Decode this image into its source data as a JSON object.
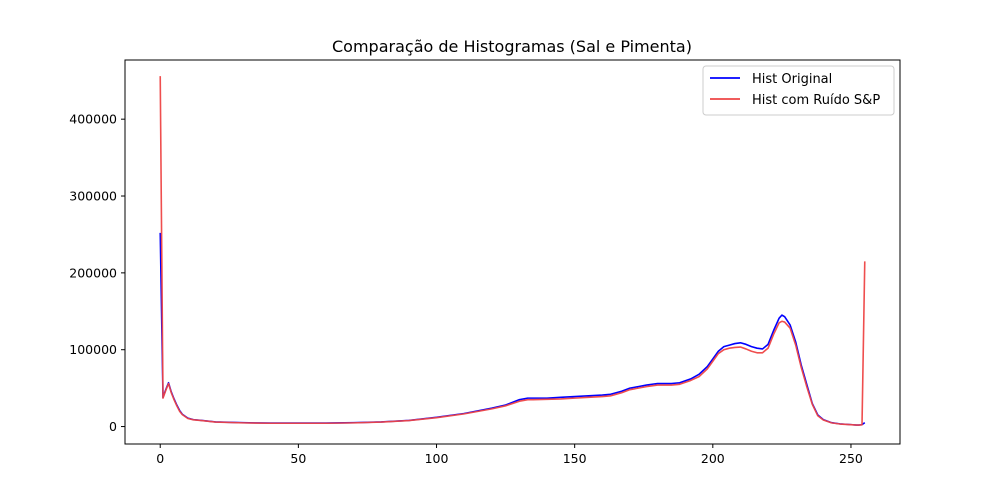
{
  "chart_data": {
    "type": "line",
    "title": "Comparação de Histogramas (Sal e Pimenta)",
    "xlabel": "",
    "ylabel": "",
    "xlim": [
      -12.75,
      267.75
    ],
    "ylim": [
      -22700,
      477000
    ],
    "xticks": [
      0,
      50,
      100,
      150,
      200,
      250
    ],
    "xtick_labels": [
      "0",
      "50",
      "100",
      "150",
      "200",
      "250"
    ],
    "yticks": [
      0,
      100000,
      200000,
      300000,
      400000
    ],
    "ytick_labels": [
      "0",
      "100000",
      "200000",
      "300000",
      "400000"
    ],
    "grid": false,
    "legend_position": "top-right",
    "series": [
      {
        "name": "Hist Original",
        "color": "#0000ff",
        "points": [
          [
            0,
            252000
          ],
          [
            1,
            38000
          ],
          [
            2,
            48000
          ],
          [
            3,
            57000
          ],
          [
            4,
            45000
          ],
          [
            5,
            36000
          ],
          [
            6,
            28000
          ],
          [
            7,
            21000
          ],
          [
            8,
            16000
          ],
          [
            10,
            11000
          ],
          [
            12,
            9000
          ],
          [
            15,
            8000
          ],
          [
            20,
            6000
          ],
          [
            30,
            5000
          ],
          [
            40,
            4500
          ],
          [
            50,
            4500
          ],
          [
            60,
            4500
          ],
          [
            70,
            5000
          ],
          [
            80,
            6000
          ],
          [
            90,
            8000
          ],
          [
            100,
            12000
          ],
          [
            110,
            17000
          ],
          [
            120,
            24000
          ],
          [
            125,
            28000
          ],
          [
            130,
            35000
          ],
          [
            133,
            37000
          ],
          [
            135,
            37000
          ],
          [
            140,
            37000
          ],
          [
            145,
            38000
          ],
          [
            150,
            39000
          ],
          [
            155,
            40000
          ],
          [
            160,
            41000
          ],
          [
            163,
            42000
          ],
          [
            167,
            46000
          ],
          [
            170,
            50000
          ],
          [
            173,
            52000
          ],
          [
            176,
            54000
          ],
          [
            180,
            56000
          ],
          [
            185,
            56000
          ],
          [
            188,
            57000
          ],
          [
            192,
            62000
          ],
          [
            195,
            68000
          ],
          [
            198,
            78000
          ],
          [
            200,
            88000
          ],
          [
            202,
            98000
          ],
          [
            204,
            104000
          ],
          [
            206,
            106000
          ],
          [
            208,
            108000
          ],
          [
            210,
            109000
          ],
          [
            212,
            107000
          ],
          [
            214,
            104000
          ],
          [
            216,
            102000
          ],
          [
            218,
            101000
          ],
          [
            220,
            107000
          ],
          [
            222,
            125000
          ],
          [
            224,
            141000
          ],
          [
            225,
            145000
          ],
          [
            226,
            143000
          ],
          [
            228,
            132000
          ],
          [
            230,
            110000
          ],
          [
            232,
            80000
          ],
          [
            234,
            55000
          ],
          [
            236,
            30000
          ],
          [
            238,
            15000
          ],
          [
            240,
            9000
          ],
          [
            243,
            5000
          ],
          [
            246,
            3500
          ],
          [
            250,
            2500
          ],
          [
            252,
            2000
          ],
          [
            253,
            2000
          ],
          [
            254,
            2500
          ],
          [
            255,
            5000
          ]
        ]
      },
      {
        "name": "Hist com Ruído S&P",
        "color": "#ee4444",
        "points": [
          [
            0,
            456000
          ],
          [
            1,
            37000
          ],
          [
            2,
            47000
          ],
          [
            3,
            56000
          ],
          [
            4,
            44000
          ],
          [
            5,
            35000
          ],
          [
            6,
            27000
          ],
          [
            7,
            20000
          ],
          [
            8,
            15500
          ],
          [
            10,
            10500
          ],
          [
            12,
            8800
          ],
          [
            15,
            7800
          ],
          [
            20,
            5800
          ],
          [
            30,
            4800
          ],
          [
            40,
            4300
          ],
          [
            50,
            4300
          ],
          [
            60,
            4300
          ],
          [
            70,
            4800
          ],
          [
            80,
            5800
          ],
          [
            90,
            7800
          ],
          [
            100,
            11500
          ],
          [
            110,
            16500
          ],
          [
            120,
            23000
          ],
          [
            125,
            27000
          ],
          [
            130,
            33000
          ],
          [
            133,
            35000
          ],
          [
            135,
            35000
          ],
          [
            140,
            35500
          ],
          [
            145,
            36000
          ],
          [
            150,
            37000
          ],
          [
            155,
            38000
          ],
          [
            160,
            39000
          ],
          [
            163,
            40000
          ],
          [
            167,
            44000
          ],
          [
            170,
            48000
          ],
          [
            173,
            50000
          ],
          [
            176,
            52000
          ],
          [
            180,
            54000
          ],
          [
            185,
            54000
          ],
          [
            188,
            55000
          ],
          [
            192,
            60000
          ],
          [
            195,
            65000
          ],
          [
            198,
            75000
          ],
          [
            200,
            85000
          ],
          [
            202,
            95000
          ],
          [
            204,
            100000
          ],
          [
            206,
            102000
          ],
          [
            208,
            103000
          ],
          [
            210,
            103500
          ],
          [
            212,
            101000
          ],
          [
            214,
            98000
          ],
          [
            216,
            96000
          ],
          [
            218,
            96000
          ],
          [
            220,
            102000
          ],
          [
            222,
            120000
          ],
          [
            224,
            135000
          ],
          [
            225,
            137000
          ],
          [
            226,
            136000
          ],
          [
            228,
            128000
          ],
          [
            230,
            106000
          ],
          [
            232,
            77000
          ],
          [
            234,
            52000
          ],
          [
            236,
            29000
          ],
          [
            238,
            14000
          ],
          [
            240,
            8500
          ],
          [
            243,
            4800
          ],
          [
            246,
            3300
          ],
          [
            250,
            2400
          ],
          [
            252,
            1900
          ],
          [
            253,
            1900
          ],
          [
            254,
            2300
          ],
          [
            255,
            215000
          ]
        ]
      }
    ]
  }
}
